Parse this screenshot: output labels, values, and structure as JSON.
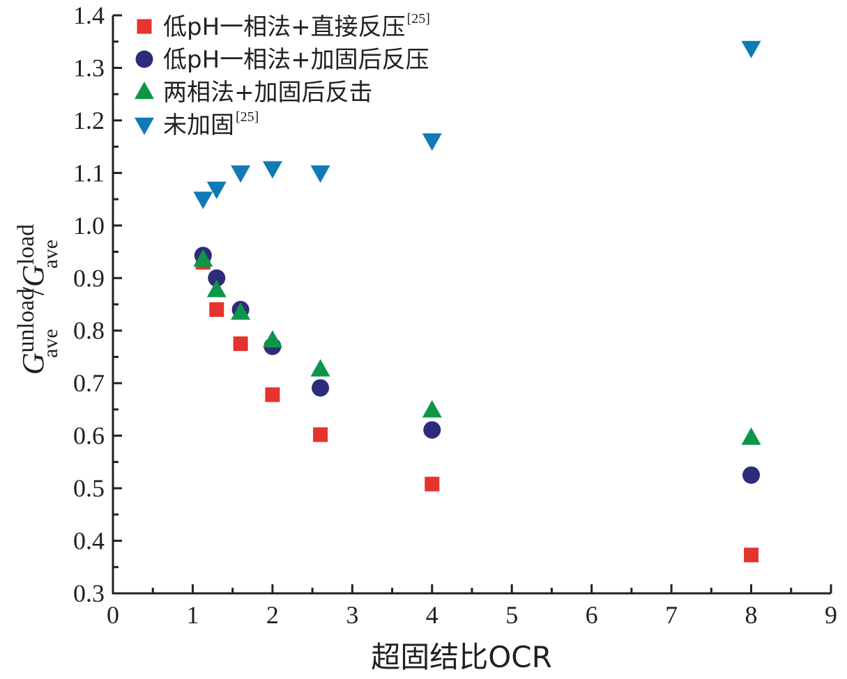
{
  "chart_data": {
    "type": "scatter",
    "xlabel": "超固结比OCR",
    "ylabel": {
      "g1": "G",
      "sub1": "ave",
      "sup1": "unload",
      "slash": "/",
      "g2": "G",
      "sub2": "ave",
      "sup2": "load"
    },
    "xlim": [
      0,
      9
    ],
    "ylim": [
      0.3,
      1.4
    ],
    "xticks": [
      "0",
      "1",
      "2",
      "3",
      "4",
      "5",
      "6",
      "7",
      "8",
      "9"
    ],
    "yticks": [
      "0.3",
      "0.4",
      "0.5",
      "0.6",
      "0.7",
      "0.8",
      "0.9",
      "1.0",
      "1.1",
      "1.2",
      "1.3",
      "1.4"
    ],
    "legend_position": "top-left",
    "series": [
      {
        "name": "低pH一相法+直接反压",
        "ref": "[25]",
        "marker": "square",
        "color": "#e4342d",
        "x": [
          1.13,
          1.3,
          1.6,
          2.0,
          2.6,
          4.0,
          8.0
        ],
        "y": [
          0.93,
          0.84,
          0.775,
          0.678,
          0.602,
          0.508,
          0.373
        ]
      },
      {
        "name": "低pH一相法+加固后反压",
        "ref": "",
        "marker": "circle",
        "color": "#2e2b7b",
        "x": [
          1.13,
          1.3,
          1.6,
          2.0,
          2.6,
          4.0,
          8.0
        ],
        "y": [
          0.943,
          0.9,
          0.84,
          0.77,
          0.691,
          0.611,
          0.525
        ]
      },
      {
        "name": "两相法+加固后反击",
        "ref": "",
        "marker": "triangle-up",
        "color": "#0e9648",
        "x": [
          1.13,
          1.3,
          1.6,
          2.0,
          2.6,
          4.0,
          8.0
        ],
        "y": [
          0.935,
          0.877,
          0.834,
          0.781,
          0.726,
          0.648,
          0.596
        ]
      },
      {
        "name": "未加固",
        "ref": "[25]",
        "marker": "triangle-down",
        "color": "#0f7ab5",
        "x": [
          1.13,
          1.3,
          1.6,
          2.0,
          2.6,
          4.0,
          8.0
        ],
        "y": [
          1.051,
          1.07,
          1.101,
          1.109,
          1.101,
          1.162,
          1.338
        ]
      }
    ]
  }
}
